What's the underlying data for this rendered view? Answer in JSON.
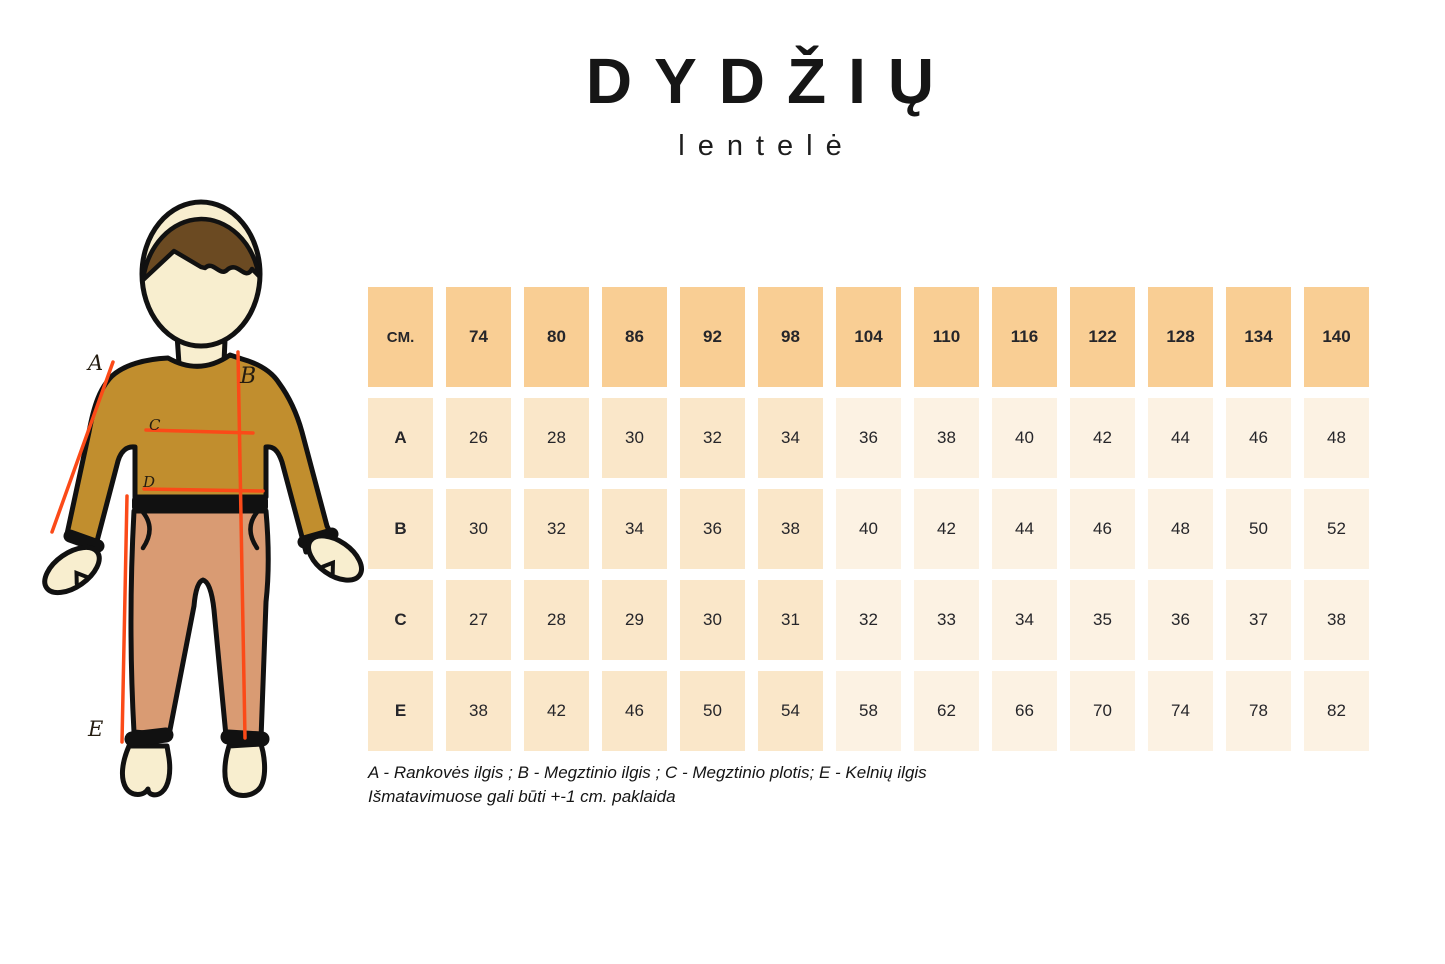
{
  "title": {
    "main": "DYDŽIŲ",
    "subtitle": "lentelė"
  },
  "table": {
    "unit_header": "CM.",
    "sizes": [
      "74",
      "80",
      "86",
      "92",
      "98",
      "104",
      "110",
      "116",
      "122",
      "128",
      "134",
      "140"
    ],
    "rows": [
      {
        "label": "A",
        "values": [
          "26",
          "28",
          "30",
          "32",
          "34",
          "36",
          "38",
          "40",
          "42",
          "44",
          "46",
          "48"
        ]
      },
      {
        "label": "B",
        "values": [
          "30",
          "32",
          "34",
          "36",
          "38",
          "40",
          "42",
          "44",
          "46",
          "48",
          "50",
          "52"
        ]
      },
      {
        "label": "C",
        "values": [
          "27",
          "28",
          "29",
          "30",
          "31",
          "32",
          "33",
          "34",
          "35",
          "36",
          "37",
          "38"
        ]
      },
      {
        "label": "E",
        "values": [
          "38",
          "42",
          "46",
          "50",
          "54",
          "58",
          "62",
          "66",
          "70",
          "74",
          "78",
          "82"
        ]
      }
    ]
  },
  "figure": {
    "measure_labels": [
      "A",
      "B",
      "C",
      "D",
      "E"
    ]
  },
  "footnote": {
    "line1": "A - Rankovės ilgis ; B - Megztinio ilgis ; C - Megztinio plotis; E - Kelnių ilgis",
    "line2": "Išmatavimuose gali būti +-1 cm. paklaida"
  },
  "colors": {
    "header_cell": "#f9ce94",
    "cell_dark": "#fae7c9",
    "cell_light": "#fcf2e3",
    "sweater": "#c18e2e",
    "pants": "#d99b73",
    "skin": "#f8eecf",
    "hair": "#6b4a22",
    "outline": "#111111",
    "measure_line": "#fb4a18",
    "text": "#161616"
  }
}
